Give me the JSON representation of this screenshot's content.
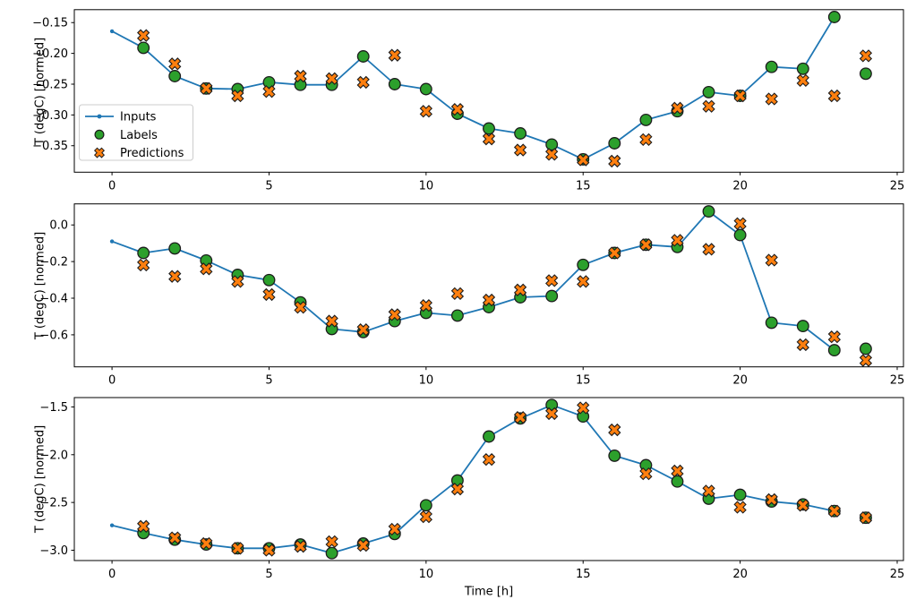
{
  "figure": {
    "xlabel": "Time [h]",
    "ylabel": "T (degC) [normed]",
    "colors": {
      "inputs": "#1f77b4",
      "labels": "#2ca02c",
      "predictions": "#ff7f0e",
      "marker_edge": "#1c1c1c",
      "axis": "#000000",
      "background": "#ffffff",
      "legend_border": "#cccccc",
      "text": "#000000"
    }
  },
  "legend": {
    "position": "upper-left-of-first-subplot",
    "items": [
      {
        "label": "Inputs",
        "marker": "line-with-dot"
      },
      {
        "label": "Labels",
        "marker": "circle"
      },
      {
        "label": "Predictions",
        "marker": "x-cross"
      }
    ]
  },
  "chart_data": [
    {
      "type": "line",
      "ylabel": "T (degC) [normed]",
      "xlabel": "",
      "xlim": [
        -1.2,
        25.2
      ],
      "ylim": [
        -0.393,
        -0.129
      ],
      "xticks": [
        0,
        5,
        10,
        15,
        20,
        25
      ],
      "yticks": [
        -0.15,
        -0.2,
        -0.25,
        -0.3,
        -0.35
      ],
      "ytick_decimals": 2,
      "grid": false,
      "show_legend": true,
      "series": [
        {
          "name": "Inputs",
          "style": "line-with-dot-markers",
          "x": [
            0,
            1,
            2,
            3,
            4,
            5,
            6,
            7,
            8,
            9,
            10,
            11,
            12,
            13,
            14,
            15,
            16,
            17,
            18,
            19,
            20,
            21,
            22,
            23
          ],
          "y": [
            -0.164,
            -0.191,
            -0.237,
            -0.257,
            -0.258,
            -0.247,
            -0.251,
            -0.251,
            -0.205,
            -0.25,
            -0.258,
            -0.298,
            -0.322,
            -0.33,
            -0.348,
            -0.372,
            -0.346,
            -0.308,
            -0.294,
            -0.263,
            -0.269,
            -0.222,
            -0.225,
            -0.141
          ]
        },
        {
          "name": "Labels",
          "style": "scatter-circle",
          "x": [
            1,
            2,
            3,
            4,
            5,
            6,
            7,
            8,
            9,
            10,
            11,
            12,
            13,
            14,
            15,
            16,
            17,
            18,
            19,
            20,
            21,
            22,
            23,
            24
          ],
          "y": [
            -0.191,
            -0.237,
            -0.257,
            -0.258,
            -0.247,
            -0.251,
            -0.251,
            -0.205,
            -0.25,
            -0.258,
            -0.298,
            -0.322,
            -0.33,
            -0.348,
            -0.372,
            -0.346,
            -0.308,
            -0.294,
            -0.263,
            -0.269,
            -0.222,
            -0.225,
            -0.141,
            -0.233
          ]
        },
        {
          "name": "Predictions",
          "style": "scatter-x",
          "x": [
            1,
            2,
            3,
            4,
            5,
            6,
            7,
            8,
            9,
            10,
            11,
            12,
            13,
            14,
            15,
            16,
            17,
            18,
            19,
            20,
            21,
            22,
            23,
            24
          ],
          "y": [
            -0.171,
            -0.217,
            -0.257,
            -0.269,
            -0.262,
            -0.237,
            -0.241,
            -0.247,
            -0.203,
            -0.294,
            -0.291,
            -0.339,
            -0.357,
            -0.364,
            -0.373,
            -0.375,
            -0.34,
            -0.289,
            -0.286,
            -0.269,
            -0.274,
            -0.244,
            -0.269,
            -0.204
          ]
        }
      ]
    },
    {
      "type": "line",
      "ylabel": "T (degC) [normed]",
      "xlabel": "",
      "xlim": [
        -1.2,
        25.2
      ],
      "ylim": [
        -0.775,
        0.115
      ],
      "xticks": [
        0,
        5,
        10,
        15,
        20,
        25
      ],
      "yticks": [
        0.0,
        -0.2,
        -0.4,
        -0.6
      ],
      "ytick_decimals": 1,
      "grid": false,
      "show_legend": false,
      "series": [
        {
          "name": "Inputs",
          "style": "line-with-dot-markers",
          "x": [
            0,
            1,
            2,
            3,
            4,
            5,
            6,
            7,
            8,
            9,
            10,
            11,
            12,
            13,
            14,
            15,
            16,
            17,
            18,
            19,
            20,
            21,
            22,
            23
          ],
          "y": [
            -0.09,
            -0.153,
            -0.128,
            -0.194,
            -0.273,
            -0.301,
            -0.423,
            -0.568,
            -0.585,
            -0.525,
            -0.48,
            -0.495,
            -0.449,
            -0.395,
            -0.388,
            -0.218,
            -0.153,
            -0.108,
            -0.12,
            0.074,
            -0.055,
            -0.534,
            -0.552,
            -0.684
          ]
        },
        {
          "name": "Labels",
          "style": "scatter-circle",
          "x": [
            1,
            2,
            3,
            4,
            5,
            6,
            7,
            8,
            9,
            10,
            11,
            12,
            13,
            14,
            15,
            16,
            17,
            18,
            19,
            20,
            21,
            22,
            23,
            24
          ],
          "y": [
            -0.153,
            -0.128,
            -0.194,
            -0.273,
            -0.301,
            -0.423,
            -0.568,
            -0.585,
            -0.525,
            -0.48,
            -0.495,
            -0.449,
            -0.395,
            -0.388,
            -0.218,
            -0.153,
            -0.108,
            -0.12,
            0.074,
            -0.055,
            -0.534,
            -0.552,
            -0.684,
            -0.676
          ]
        },
        {
          "name": "Predictions",
          "style": "scatter-x",
          "x": [
            1,
            2,
            3,
            4,
            5,
            6,
            7,
            8,
            9,
            10,
            11,
            12,
            13,
            14,
            15,
            16,
            17,
            18,
            19,
            20,
            21,
            22,
            23,
            24
          ],
          "y": [
            -0.219,
            -0.281,
            -0.24,
            -0.309,
            -0.38,
            -0.45,
            -0.525,
            -0.572,
            -0.49,
            -0.44,
            -0.375,
            -0.41,
            -0.355,
            -0.304,
            -0.309,
            -0.153,
            -0.108,
            -0.084,
            -0.133,
            0.007,
            -0.192,
            -0.654,
            -0.611,
            -0.74
          ]
        }
      ]
    },
    {
      "type": "line",
      "ylabel": "T (degC) [normed]",
      "xlabel": "Time [h]",
      "xlim": [
        -1.2,
        25.2
      ],
      "ylim": [
        -3.108,
        -1.402
      ],
      "xticks": [
        0,
        5,
        10,
        15,
        20,
        25
      ],
      "yticks": [
        -1.5,
        -2.0,
        -2.5,
        -3.0
      ],
      "ytick_decimals": 1,
      "grid": false,
      "show_legend": false,
      "series": [
        {
          "name": "Inputs",
          "style": "line-with-dot-markers",
          "x": [
            0,
            1,
            2,
            3,
            4,
            5,
            6,
            7,
            8,
            9,
            10,
            11,
            12,
            13,
            14,
            15,
            16,
            17,
            18,
            19,
            20,
            21,
            22,
            23
          ],
          "y": [
            -2.74,
            -2.82,
            -2.89,
            -2.94,
            -2.98,
            -2.98,
            -2.94,
            -3.03,
            -2.93,
            -2.83,
            -2.53,
            -2.27,
            -1.81,
            -1.62,
            -1.48,
            -1.6,
            -2.01,
            -2.11,
            -2.28,
            -2.46,
            -2.42,
            -2.49,
            -2.52,
            -2.59
          ]
        },
        {
          "name": "Labels",
          "style": "scatter-circle",
          "x": [
            1,
            2,
            3,
            4,
            5,
            6,
            7,
            8,
            9,
            10,
            11,
            12,
            13,
            14,
            15,
            16,
            17,
            18,
            19,
            20,
            21,
            22,
            23,
            24
          ],
          "y": [
            -2.82,
            -2.89,
            -2.94,
            -2.98,
            -2.98,
            -2.94,
            -3.03,
            -2.93,
            -2.83,
            -2.53,
            -2.27,
            -1.81,
            -1.62,
            -1.48,
            -1.6,
            -2.01,
            -2.11,
            -2.28,
            -2.46,
            -2.42,
            -2.49,
            -2.52,
            -2.59,
            -2.66
          ]
        },
        {
          "name": "Predictions",
          "style": "scatter-x",
          "x": [
            1,
            2,
            3,
            4,
            5,
            6,
            7,
            8,
            9,
            10,
            11,
            12,
            13,
            14,
            15,
            16,
            17,
            18,
            19,
            20,
            21,
            22,
            23,
            24
          ],
          "y": [
            -2.75,
            -2.87,
            -2.93,
            -2.98,
            -3.0,
            -2.96,
            -2.91,
            -2.95,
            -2.78,
            -2.65,
            -2.36,
            -2.05,
            -1.61,
            -1.57,
            -1.51,
            -1.74,
            -2.2,
            -2.17,
            -2.38,
            -2.55,
            -2.47,
            -2.53,
            -2.59,
            -2.66
          ]
        }
      ]
    }
  ]
}
